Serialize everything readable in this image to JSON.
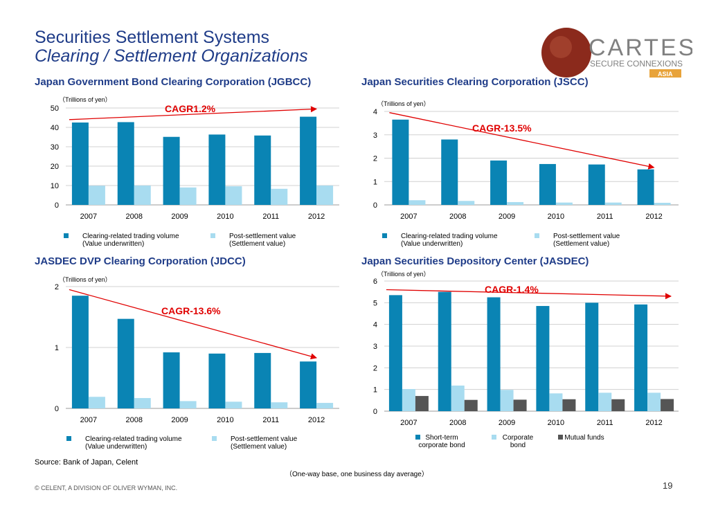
{
  "header": {
    "title": "Securities Settlement Systems",
    "subtitle": "Clearing / Settlement Organizations"
  },
  "logo": {
    "brand": "CARTES",
    "tagline": "SECURE CONNEXIONS",
    "region": "ASIA"
  },
  "footer": {
    "source": "Source: Bank of Japan, Celent",
    "note": "（One-way base, one business day average）",
    "copyright": "© CELENT, A DIVISION OF OLIVER WYMAN, INC.",
    "page_number": "19"
  },
  "colors": {
    "primary_bar": "#0a84b4",
    "secondary_bar": "#a8dcf0",
    "tertiary_bar": "#555555",
    "cagr_red": "#e00000",
    "title_blue": "#1f3c88",
    "logo_brown": "#8b2a1c",
    "logo_gray": "#808080",
    "logo_gold": "#e8a33a"
  },
  "chart_data": [
    {
      "id": "jgbcc",
      "type": "bar",
      "title": "Japan Government Bond Clearing Corporation (JGBCC)",
      "unit_label": "（Trillions of yen）",
      "categories": [
        "2007",
        "2008",
        "2009",
        "2010",
        "2011",
        "2012"
      ],
      "ylim": [
        0,
        50
      ],
      "yticks": [
        0,
        10,
        20,
        30,
        40,
        50
      ],
      "series": [
        {
          "name": "Clearing-related trading volume (Value underwritten)",
          "values": [
            42.5,
            42.7,
            35.1,
            36.3,
            35.8,
            45.5
          ]
        },
        {
          "name": "Post-settlement value (Settlement value)",
          "values": [
            9.9,
            10.0,
            9.0,
            9.6,
            8.3,
            10.0
          ]
        }
      ],
      "cagr": {
        "label": "CAGR1.2%",
        "from": 44,
        "to": 49.5
      },
      "legend": [
        {
          "lines": [
            "Clearing-related trading volume",
            "(Value underwritten)"
          ]
        },
        {
          "lines": [
            "Post-settlement value",
            "(Settlement value)"
          ]
        }
      ]
    },
    {
      "id": "jscc",
      "type": "bar",
      "title": "Japan Securities Clearing Corporation (JSCC)",
      "unit_label": "（Trillions of yen）",
      "categories": [
        "2007",
        "2008",
        "2009",
        "2010",
        "2011",
        "2012"
      ],
      "ylim": [
        0,
        4
      ],
      "yticks": [
        0,
        1,
        2,
        3,
        4
      ],
      "series": [
        {
          "name": "Clearing-related trading volume (Value underwritten)",
          "values": [
            3.65,
            2.8,
            1.9,
            1.75,
            1.73,
            1.52
          ]
        },
        {
          "name": "Post-settlement value (Settlement value)",
          "values": [
            0.2,
            0.17,
            0.12,
            0.1,
            0.1,
            0.09
          ]
        }
      ],
      "cagr": {
        "label": "CAGR-13.5%",
        "from": 3.95,
        "to": 1.6
      },
      "legend": [
        {
          "lines": [
            "Clearing-related trading volume",
            "(Value underwritten)"
          ]
        },
        {
          "lines": [
            "Post-settlement value",
            "(Settlement value)"
          ]
        }
      ]
    },
    {
      "id": "jdcc",
      "type": "bar",
      "title": "JASDEC DVP Clearing Corporation (JDCC)",
      "unit_label": "（Trillions of yen）",
      "categories": [
        "2007",
        "2008",
        "2009",
        "2010",
        "2011",
        "2012"
      ],
      "ylim": [
        0,
        2
      ],
      "yticks": [
        0,
        1,
        2
      ],
      "series": [
        {
          "name": "Clearing-related trading volume (Value underwritten)",
          "values": [
            1.85,
            1.47,
            0.92,
            0.9,
            0.91,
            0.77
          ]
        },
        {
          "name": "Post-settlement value (Settlement value)",
          "values": [
            0.19,
            0.17,
            0.12,
            0.11,
            0.1,
            0.09
          ]
        }
      ],
      "cagr": {
        "label": "CAGR-13.6%",
        "from": 1.95,
        "to": 0.83
      },
      "legend": [
        {
          "lines": [
            "Clearing-related trading volume",
            "(Value underwritten)"
          ]
        },
        {
          "lines": [
            "Post-settlement value",
            "(Settlement value)"
          ]
        }
      ]
    },
    {
      "id": "jasdec",
      "type": "bar",
      "title": "Japan Securities Depository Center (JASDEC)",
      "unit_label": "（Trillions of yen）",
      "categories": [
        "2007",
        "2008",
        "2009",
        "2010",
        "2011",
        "2012"
      ],
      "ylim": [
        0,
        6
      ],
      "yticks": [
        0,
        1,
        2,
        3,
        4,
        5,
        6
      ],
      "series": [
        {
          "name": "Short-term corporate bond",
          "values": [
            5.35,
            5.5,
            5.25,
            4.85,
            5.0,
            4.92
          ]
        },
        {
          "name": "Corporate bond",
          "values": [
            1.02,
            1.18,
            0.98,
            0.82,
            0.85,
            0.85
          ]
        },
        {
          "name": "Mutual funds",
          "values": [
            0.7,
            0.52,
            0.53,
            0.55,
            0.55,
            0.56
          ]
        }
      ],
      "cagr": {
        "label": "CAGR-1.4%",
        "from": 5.6,
        "to": 5.3
      },
      "legend": [
        {
          "lines": [
            "Short-term",
            "corporate bond"
          ]
        },
        {
          "lines": [
            "Corporate",
            "bond"
          ]
        },
        {
          "lines": [
            "Mutual funds"
          ]
        }
      ]
    }
  ]
}
